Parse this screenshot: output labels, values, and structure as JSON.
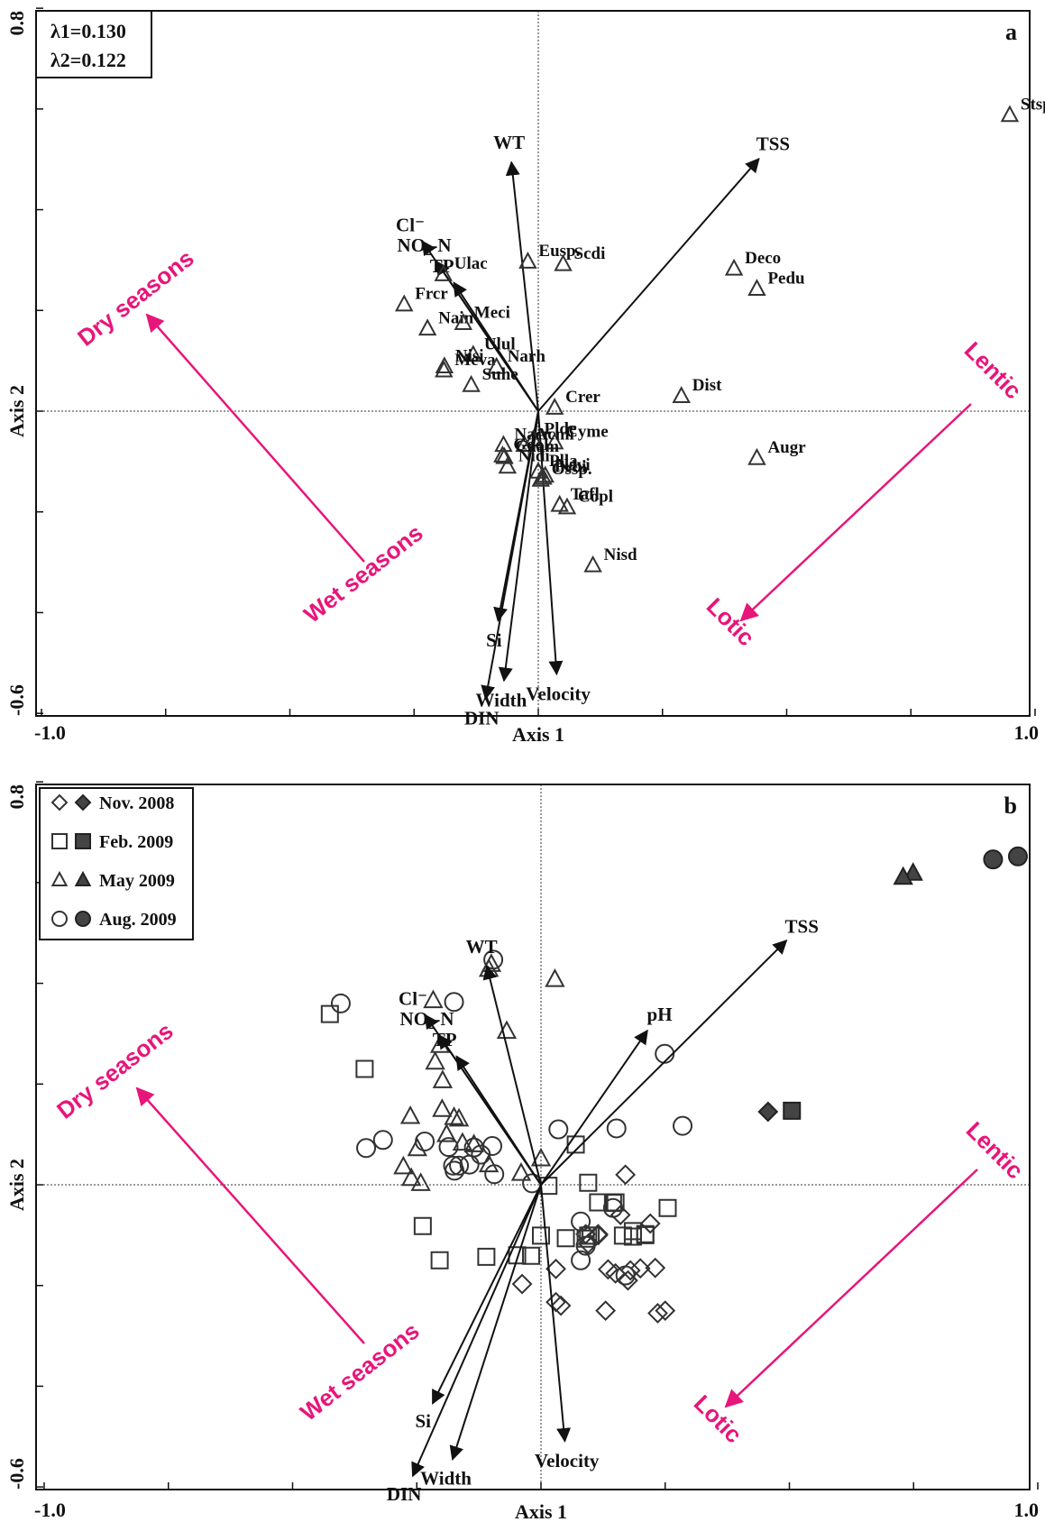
{
  "chart_data": [
    {
      "type": "scatter",
      "panel_letter": "a",
      "xlabel": "Axis 1",
      "ylabel": "Axis 2",
      "xlim": [
        -1.0,
        1.0
      ],
      "ylim": [
        -0.6,
        0.8
      ],
      "x_tick_labels": [
        "-1.0",
        "Axis 1",
        "1.0"
      ],
      "y_tick_labels": [
        "0.8",
        "-0.6"
      ],
      "eigen_box": [
        "λ1=0.130",
        "λ2=0.122"
      ],
      "env_vectors": [
        {
          "label": "Cl⁻",
          "x": -0.233,
          "y": 0.337
        },
        {
          "label": "NO₂-N",
          "x": -0.205,
          "y": 0.297
        },
        {
          "label": "TP",
          "x": -0.17,
          "y": 0.255
        },
        {
          "label": "WT",
          "x": -0.054,
          "y": 0.494
        },
        {
          "label": "TSS",
          "x": 0.444,
          "y": 0.501
        },
        {
          "label": "Si",
          "x": -0.081,
          "y": -0.416
        },
        {
          "label": "DIN",
          "x": -0.106,
          "y": -0.571
        },
        {
          "label": "Width",
          "x": -0.069,
          "y": -0.535
        },
        {
          "label": "Velocity",
          "x": 0.037,
          "y": -0.522
        }
      ],
      "species": [
        {
          "label": "Stsp.",
          "x": 0.949,
          "y": 0.588
        },
        {
          "label": "Eusp.",
          "x": -0.021,
          "y": 0.297
        },
        {
          "label": "Scdi",
          "x": 0.05,
          "y": 0.292
        },
        {
          "label": "Deco",
          "x": 0.394,
          "y": 0.283
        },
        {
          "label": "Pedu",
          "x": 0.44,
          "y": 0.243
        },
        {
          "label": "Frcr",
          "x": -0.27,
          "y": 0.212
        },
        {
          "label": "Ulac",
          "x": -0.191,
          "y": 0.272
        },
        {
          "label": "Nain",
          "x": -0.223,
          "y": 0.164
        },
        {
          "label": "Meci",
          "x": -0.151,
          "y": 0.175
        },
        {
          "label": "Ulul",
          "x": -0.131,
          "y": 0.112
        },
        {
          "label": "Nisi",
          "x": -0.189,
          "y": 0.089
        },
        {
          "label": "Meva",
          "x": -0.19,
          "y": 0.081
        },
        {
          "label": "Narh",
          "x": -0.084,
          "y": 0.088
        },
        {
          "label": "Suhe",
          "x": -0.135,
          "y": 0.052
        },
        {
          "label": "Crer",
          "x": 0.033,
          "y": 0.007
        },
        {
          "label": "Dist",
          "x": 0.288,
          "y": 0.03
        },
        {
          "label": "Plde",
          "x": -0.01,
          "y": -0.056
        },
        {
          "label": "Cyme",
          "x": 0.033,
          "y": -0.062
        },
        {
          "label": "Acmi",
          "x": -0.028,
          "y": -0.067
        },
        {
          "label": "Augr",
          "x": 0.44,
          "y": -0.093
        },
        {
          "label": "Nacr",
          "x": -0.07,
          "y": -0.067
        },
        {
          "label": "Gool",
          "x": -0.072,
          "y": -0.088
        },
        {
          "label": "Caam",
          "x": -0.068,
          "y": -0.091
        },
        {
          "label": "Nidi",
          "x": -0.062,
          "y": -0.11
        },
        {
          "label": "Plla",
          "x": 0.0,
          "y": -0.12
        },
        {
          "label": "Frbi",
          "x": 0.01,
          "y": -0.132
        },
        {
          "label": "Navi",
          "x": 0.014,
          "y": -0.128
        },
        {
          "label": "Ossp.",
          "x": 0.005,
          "y": -0.136
        },
        {
          "label": "Copl",
          "x": 0.058,
          "y": -0.191
        },
        {
          "label": "Tafl",
          "x": 0.043,
          "y": -0.186
        },
        {
          "label": "Nisd",
          "x": 0.11,
          "y": -0.306
        }
      ],
      "annotations": [
        "Dry seasons",
        "Wet seasons",
        "Lentic",
        "Lotic"
      ]
    },
    {
      "type": "scatter",
      "panel_letter": "b",
      "xlabel": "Axis 1",
      "ylabel": "Axis 2",
      "xlim": [
        -1.0,
        1.0
      ],
      "ylim": [
        -0.6,
        0.8
      ],
      "x_tick_labels": [
        "-1.0",
        "Axis 1",
        "1.0"
      ],
      "y_tick_labels": [
        "0.8",
        "-0.6"
      ],
      "env_vectors": [
        {
          "label": "Cl⁻",
          "x": -0.233,
          "y": 0.337
        },
        {
          "label": "NO₂-N",
          "x": -0.205,
          "y": 0.297
        },
        {
          "label": "TP",
          "x": -0.17,
          "y": 0.255
        },
        {
          "label": "WT",
          "x": -0.109,
          "y": 0.434
        },
        {
          "label": "pH",
          "x": 0.214,
          "y": 0.306
        },
        {
          "label": "TSS",
          "x": 0.494,
          "y": 0.485
        },
        {
          "label": "Si",
          "x": -0.218,
          "y": -0.434
        },
        {
          "label": "DIN",
          "x": -0.258,
          "y": -0.578
        },
        {
          "label": "Width",
          "x": -0.178,
          "y": -0.545
        },
        {
          "label": "Velocity",
          "x": 0.048,
          "y": -0.509
        }
      ],
      "legend": [
        {
          "label": "Nov. 2008",
          "marker": "diamond"
        },
        {
          "label": "Feb. 2009",
          "marker": "square"
        },
        {
          "label": "May 2009",
          "marker": "triangle"
        },
        {
          "label": "Aug. 2009",
          "marker": "circle"
        }
      ],
      "series": [
        {
          "name": "Nov. 2008",
          "marker": "diamond",
          "filled": false,
          "points": [
            [
              0.17,
              0.02
            ],
            [
              0.16,
              -0.06
            ],
            [
              0.115,
              -0.1
            ],
            [
              0.095,
              -0.117
            ],
            [
              0.22,
              -0.077
            ],
            [
              0.23,
              -0.165
            ],
            [
              0.2,
              -0.166
            ],
            [
              0.135,
              -0.168
            ],
            [
              0.18,
              -0.17
            ],
            [
              0.15,
              -0.176
            ],
            [
              0.175,
              -0.19
            ],
            [
              0.09,
              -0.098
            ],
            [
              0.115,
              -0.098
            ],
            [
              0.03,
              -0.167
            ],
            [
              -0.038,
              -0.197
            ],
            [
              0.03,
              -0.233
            ],
            [
              0.04,
              -0.24
            ],
            [
              0.25,
              -0.25
            ],
            [
              0.13,
              -0.25
            ],
            [
              0.235,
              -0.255
            ]
          ]
        },
        {
          "name": "Nov. 2008",
          "marker": "diamond",
          "filled": true,
          "points": [
            [
              0.457,
              0.145
            ]
          ]
        },
        {
          "name": "Feb. 2009",
          "marker": "square",
          "filled": false,
          "points": [
            [
              -0.425,
              0.339
            ],
            [
              -0.355,
              0.23
            ],
            [
              -0.238,
              -0.082
            ],
            [
              -0.204,
              -0.15
            ],
            [
              -0.11,
              -0.143
            ],
            [
              -0.048,
              -0.14
            ],
            [
              -0.02,
              -0.141
            ],
            [
              0.0,
              -0.101
            ],
            [
              0.05,
              -0.106
            ],
            [
              0.09,
              -0.107
            ],
            [
              0.1,
              -0.101
            ],
            [
              0.115,
              -0.035
            ],
            [
              0.15,
              -0.035
            ],
            [
              0.21,
              -0.098
            ],
            [
              0.185,
              -0.103
            ],
            [
              0.255,
              -0.046
            ],
            [
              0.015,
              -0.002
            ],
            [
              0.145,
              -0.036
            ],
            [
              0.165,
              -0.101
            ],
            [
              0.095,
              0.004
            ],
            [
              0.07,
              0.08
            ],
            [
              0.095,
              -0.101
            ],
            [
              0.21,
              -0.1
            ],
            [
              0.185,
              -0.092
            ]
          ]
        },
        {
          "name": "Feb. 2009",
          "marker": "square",
          "filled": true,
          "points": [
            [
              0.505,
              0.147
            ]
          ]
        },
        {
          "name": "May 2009",
          "marker": "triangle",
          "filled": false,
          "points": [
            [
              -0.1,
              0.438
            ],
            [
              -0.105,
              0.428
            ],
            [
              0.028,
              0.408
            ],
            [
              -0.217,
              0.366
            ],
            [
              -0.069,
              0.305
            ],
            [
              -0.203,
              0.277
            ],
            [
              -0.213,
              0.244
            ],
            [
              -0.198,
              0.207
            ],
            [
              -0.263,
              0.136
            ],
            [
              -0.165,
              0.131
            ],
            [
              -0.175,
              0.134
            ],
            [
              -0.199,
              0.15
            ],
            [
              -0.249,
              0.072
            ],
            [
              -0.277,
              0.036
            ],
            [
              -0.261,
              0.013
            ],
            [
              -0.242,
              0.003
            ],
            [
              -0.105,
              0.04
            ],
            [
              -0.04,
              0.023
            ],
            [
              0.0,
              0.052
            ],
            [
              -0.158,
              0.083
            ],
            [
              -0.19,
              0.1
            ],
            [
              -0.135,
              0.08
            ]
          ]
        },
        {
          "name": "May 2009",
          "marker": "triangle",
          "filled": true,
          "points": [
            [
              0.749,
              0.619
            ],
            [
              0.729,
              0.611
            ]
          ]
        },
        {
          "name": "Aug. 2009",
          "marker": "circle",
          "filled": false,
          "points": [
            [
              -0.096,
              0.447
            ],
            [
              -0.403,
              0.36
            ],
            [
              -0.175,
              0.363
            ],
            [
              -0.318,
              0.089
            ],
            [
              -0.352,
              0.073
            ],
            [
              -0.186,
              0.075
            ],
            [
              -0.135,
              0.074
            ],
            [
              -0.098,
              0.077
            ],
            [
              -0.121,
              0.06
            ],
            [
              -0.144,
              0.04
            ],
            [
              -0.177,
              0.038
            ],
            [
              -0.165,
              0.038
            ],
            [
              -0.018,
              0.003
            ],
            [
              0.035,
              0.11
            ],
            [
              0.285,
              0.117
            ],
            [
              0.249,
              0.26
            ],
            [
              0.152,
              0.112
            ],
            [
              0.145,
              -0.046
            ],
            [
              0.08,
              -0.073
            ],
            [
              0.08,
              -0.15
            ],
            [
              0.17,
              -0.18
            ],
            [
              0.09,
              -0.121
            ],
            [
              -0.094,
              0.021
            ],
            [
              -0.174,
              0.028
            ],
            [
              -0.234,
              0.086
            ]
          ]
        },
        {
          "name": "Aug. 2009",
          "marker": "circle",
          "filled": true,
          "points": [
            [
              0.91,
              0.646
            ],
            [
              0.96,
              0.652
            ]
          ]
        }
      ],
      "annotations": [
        "Dry seasons",
        "Wet seasons",
        "Lentic",
        "Lotic"
      ]
    }
  ]
}
